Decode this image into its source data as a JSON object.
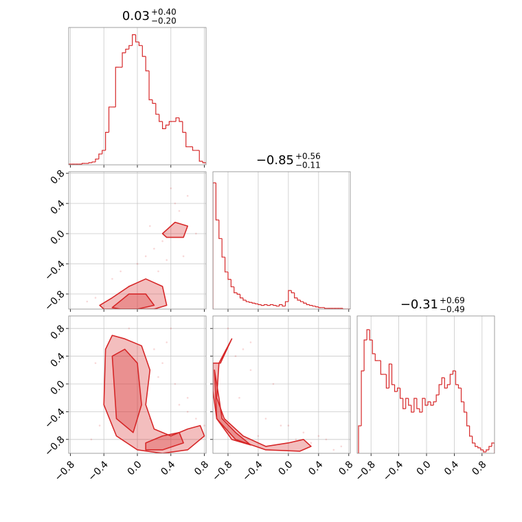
{
  "chart_data": [
    {
      "type": "histogram",
      "color": "#d62728",
      "title": "0.03",
      "title_upper": "+0.40",
      "title_lower": "−0.20",
      "bins": [
        -0.82,
        -0.78,
        -0.74,
        -0.7,
        -0.66,
        -0.62,
        -0.58,
        -0.54,
        -0.5,
        -0.46,
        -0.42,
        -0.38,
        -0.34,
        -0.3,
        -0.26,
        -0.22,
        -0.18,
        -0.14,
        -0.1,
        -0.06,
        -0.02,
        0.02,
        0.06,
        0.1,
        0.14,
        0.18,
        0.22,
        0.26,
        0.3,
        0.34,
        0.38,
        0.42,
        0.46,
        0.5,
        0.54,
        0.58,
        0.62,
        0.66,
        0.7,
        0.74,
        0.78,
        0.82
      ],
      "values": [
        1,
        1,
        1,
        1,
        2,
        2,
        3,
        4,
        8,
        15,
        20,
        45,
        80,
        80,
        135,
        135,
        155,
        160,
        165,
        180,
        170,
        165,
        150,
        130,
        90,
        85,
        70,
        60,
        50,
        55,
        60,
        60,
        65,
        60,
        45,
        25,
        25,
        20,
        20,
        5,
        3
      ],
      "xlim": [
        -0.82,
        0.82
      ],
      "ylim": [
        0,
        190
      ],
      "xticks": [
        {
          "value": -0.8,
          "label": "−0.8"
        },
        {
          "value": -0.4,
          "label": "−0.4"
        },
        {
          "value": 0,
          "label": "0.0"
        },
        0.4,
        0.8
      ],
      "grid": true
    },
    {
      "type": "contour",
      "color": "#d62728",
      "x": [
        -0.5,
        -0.3,
        -0.2,
        0.0,
        0.1,
        0.2,
        0.3,
        0.5,
        0.6,
        0.4,
        -0.6,
        0.25,
        0.55,
        0.7,
        0.15,
        -0.1,
        0.35,
        0.45
      ],
      "y": [
        -0.85,
        -0.6,
        -0.5,
        -0.4,
        -0.3,
        -0.2,
        -0.1,
        0.3,
        0.5,
        0.6,
        -0.9,
        -0.5,
        -0.3,
        0.0,
        0.1,
        -0.7,
        -0.35,
        0.4
      ],
      "contours": [
        {
          "x": [
            -0.45,
            -0.3,
            -0.1,
            0.1,
            0.3,
            0.35,
            0.2,
            0.0,
            -0.2,
            -0.4
          ],
          "y": [
            -0.95,
            -0.85,
            -0.7,
            -0.6,
            -0.7,
            -0.95,
            -1.0,
            -1.0,
            -1.0,
            -1.0
          ]
        },
        {
          "x": [
            -0.3,
            -0.1,
            0.1,
            0.2,
            0.0,
            -0.2
          ],
          "y": [
            -0.98,
            -0.8,
            -0.8,
            -0.95,
            -1.0,
            -1.0
          ]
        },
        {
          "x": [
            0.3,
            0.45,
            0.6,
            0.55,
            0.35
          ],
          "y": [
            0.0,
            0.15,
            0.1,
            -0.05,
            -0.05
          ]
        }
      ],
      "xlim": [
        -0.82,
        0.82
      ],
      "ylim": [
        -1.0,
        0.82
      ],
      "xticks": [
        {
          "value": -0.8,
          "label": "−0.8"
        },
        {
          "value": -0.4,
          "label": "−0.4"
        },
        {
          "value": 0,
          "label": "0.0"
        },
        0.4,
        0.8
      ],
      "yticks": [
        {
          "value": -0.8,
          "label": "−0.8"
        },
        {
          "value": -0.4,
          "label": "−0.4"
        },
        {
          "value": 0,
          "label": "0.0"
        },
        0.4,
        0.8
      ],
      "grid": true
    },
    {
      "type": "histogram",
      "color": "#d62728",
      "title": "−0.85",
      "title_upper": "+0.56",
      "title_lower": "−0.11",
      "bins": [
        -1.0,
        -0.96,
        -0.92,
        -0.88,
        -0.84,
        -0.8,
        -0.76,
        -0.72,
        -0.68,
        -0.64,
        -0.6,
        -0.56,
        -0.52,
        -0.48,
        -0.44,
        -0.4,
        -0.36,
        -0.32,
        -0.28,
        -0.24,
        -0.2,
        -0.16,
        -0.12,
        -0.08,
        -0.04,
        0.0,
        0.04,
        0.08,
        0.12,
        0.16,
        0.2,
        0.24,
        0.28,
        0.32,
        0.36,
        0.4,
        0.44,
        0.48,
        0.52,
        0.56,
        0.6,
        0.64,
        0.68,
        0.72,
        0.76,
        0.8,
        0.84
      ],
      "values": [
        170,
        120,
        95,
        70,
        50,
        40,
        30,
        22,
        20,
        15,
        12,
        10,
        9,
        8,
        7,
        6,
        5,
        6,
        5,
        6,
        5,
        4,
        6,
        4,
        10,
        25,
        22,
        15,
        12,
        10,
        8,
        6,
        5,
        4,
        3,
        2,
        2,
        1,
        1,
        1,
        1,
        1,
        1,
        0,
        0,
        0
      ],
      "xlim": [
        -1.0,
        0.82
      ],
      "ylim": [
        0,
        185
      ],
      "xticks": [
        {
          "value": -0.8,
          "label": "−0.8"
        },
        {
          "value": -0.4,
          "label": "−0.4"
        },
        {
          "value": 0,
          "label": "0.0"
        },
        0.4,
        0.8
      ],
      "grid": true
    },
    {
      "type": "contour",
      "color": "#d62728",
      "x": [
        -0.5,
        -0.45,
        0.2,
        0.3,
        0.5,
        0.6,
        0.7,
        0.85,
        0.9,
        0.4,
        -0.1,
        0.25,
        0.15,
        0.6,
        0.35,
        -0.55,
        0.45,
        0.8
      ],
      "y": [
        0.3,
        -0.6,
        0.5,
        0.3,
        -0.3,
        -0.4,
        -0.5,
        -0.3,
        -0.4,
        0.8,
        0.8,
        0.1,
        -0.5,
        -0.2,
        0.6,
        -0.8,
        0.0,
        -0.6
      ],
      "contours": [
        {
          "x": [
            -0.38,
            -0.3,
            -0.15,
            0.05,
            0.15,
            0.1,
            0.2,
            0.4,
            0.6,
            0.75,
            0.8,
            0.6,
            0.3,
            0.0,
            -0.25,
            -0.4
          ],
          "y": [
            0.5,
            0.7,
            0.65,
            0.55,
            0.2,
            -0.3,
            -0.65,
            -0.75,
            -0.65,
            -0.6,
            -0.75,
            -0.95,
            -1.0,
            -0.95,
            -0.75,
            -0.3
          ]
        },
        {
          "x": [
            -0.3,
            -0.15,
            0.0,
            0.05,
            -0.05,
            -0.25
          ],
          "y": [
            0.4,
            0.5,
            0.3,
            -0.3,
            -0.7,
            -0.5
          ]
        },
        {
          "x": [
            0.1,
            0.3,
            0.5,
            0.55,
            0.3,
            0.1
          ],
          "y": [
            -0.85,
            -0.75,
            -0.7,
            -0.85,
            -0.95,
            -0.95
          ]
        }
      ],
      "xlim": [
        -0.82,
        0.82
      ],
      "ylim": [
        -1.0,
        0.98
      ],
      "xticks": [
        {
          "value": -0.8,
          "label": "−0.8"
        },
        {
          "value": -0.4,
          "label": "−0.4"
        },
        {
          "value": 0,
          "label": "0.0"
        },
        0.4,
        0.8
      ],
      "yticks": [
        {
          "value": -0.8,
          "label": "−0.8"
        },
        {
          "value": -0.4,
          "label": "−0.4"
        },
        {
          "value": 0,
          "label": "0.0"
        },
        0.4,
        0.8
      ],
      "grid": true
    },
    {
      "type": "contour",
      "color": "#d62728",
      "x": [
        -0.8,
        -0.6,
        -0.5,
        -0.3,
        -0.1,
        0.2,
        0.4,
        0.5,
        0.7,
        -0.65,
        -0.4,
        0.0,
        0.3,
        -0.2,
        0.6,
        -0.5,
        -0.7,
        0.1
      ],
      "y": [
        0.8,
        0.5,
        0.2,
        -0.5,
        -0.6,
        -0.7,
        -0.75,
        -0.8,
        -0.9,
        -0.2,
        -0.75,
        -0.6,
        -0.85,
        0.0,
        -0.95,
        0.6,
        0.4,
        -0.8
      ],
      "contours": [
        {
          "x": [
            -0.9,
            -0.75,
            -0.92,
            -0.95,
            -0.85,
            -0.6,
            -0.3,
            0.0,
            0.2,
            0.3,
            0.15,
            -0.3,
            -0.7,
            -0.95,
            -1.0,
            -1.0
          ],
          "y": [
            0.3,
            0.65,
            0.3,
            -0.2,
            -0.5,
            -0.75,
            -0.9,
            -0.85,
            -0.8,
            -0.9,
            -0.97,
            -0.95,
            -0.8,
            -0.5,
            -0.1,
            0.3
          ]
        },
        {
          "x": [
            -0.98,
            -0.92,
            -0.88,
            -0.7,
            -0.5,
            -0.75,
            -0.95
          ],
          "y": [
            0.2,
            -0.2,
            -0.5,
            -0.7,
            -0.88,
            -0.8,
            -0.5
          ]
        }
      ],
      "xlim": [
        -1.0,
        0.82
      ],
      "ylim": [
        -1.0,
        0.98
      ],
      "xticks": [
        {
          "value": -0.8,
          "label": "−0.8"
        },
        {
          "value": -0.4,
          "label": "−0.4"
        },
        {
          "value": 0,
          "label": "0.0"
        },
        0.4,
        0.8
      ],
      "yticks": [
        {
          "value": -0.8,
          "label": "−0.8"
        },
        {
          "value": -0.4,
          "label": "−0.4"
        },
        {
          "value": 0,
          "label": "0.0"
        },
        0.4,
        0.8
      ],
      "grid": true
    },
    {
      "type": "histogram",
      "color": "#d62728",
      "title": "−0.31",
      "title_upper": "+0.69",
      "title_lower": "−0.49",
      "bins": [
        -0.98,
        -0.94,
        -0.9,
        -0.86,
        -0.82,
        -0.78,
        -0.74,
        -0.7,
        -0.66,
        -0.62,
        -0.58,
        -0.54,
        -0.5,
        -0.46,
        -0.42,
        -0.38,
        -0.34,
        -0.3,
        -0.26,
        -0.22,
        -0.18,
        -0.14,
        -0.1,
        -0.06,
        -0.02,
        0.02,
        0.06,
        0.1,
        0.14,
        0.18,
        0.22,
        0.26,
        0.3,
        0.34,
        0.38,
        0.42,
        0.46,
        0.5,
        0.54,
        0.58,
        0.62,
        0.66,
        0.7,
        0.74,
        0.78,
        0.82,
        0.86,
        0.9,
        0.94,
        0.98
      ],
      "values": [
        40,
        120,
        165,
        180,
        165,
        145,
        135,
        135,
        115,
        115,
        95,
        130,
        100,
        90,
        95,
        80,
        65,
        80,
        70,
        60,
        80,
        65,
        60,
        80,
        70,
        75,
        70,
        75,
        85,
        100,
        110,
        95,
        100,
        115,
        120,
        100,
        95,
        75,
        60,
        40,
        25,
        15,
        10,
        8,
        5,
        2,
        5,
        10,
        15
      ],
      "xlim": [
        -1.0,
        0.98
      ],
      "ylim": [
        0,
        200
      ],
      "xticks": [
        {
          "value": -0.8,
          "label": "−0.8"
        },
        {
          "value": -0.4,
          "label": "−0.4"
        },
        {
          "value": 0,
          "label": "0.0"
        },
        0.4,
        0.8
      ],
      "grid": true
    }
  ]
}
